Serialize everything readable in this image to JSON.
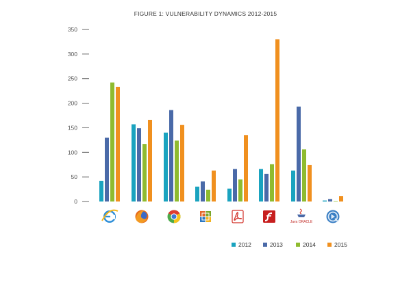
{
  "chart_data": {
    "type": "bar",
    "title": "FIGURE 1: VULNERABILITY DYNAMICS 2012-2015",
    "xlabel": "",
    "ylabel": "",
    "ylim": [
      0,
      350
    ],
    "yticks": [
      "0",
      "50",
      "100",
      "150",
      "200",
      "250",
      "300",
      "350"
    ],
    "grid": false,
    "legend_position": "bottom-right",
    "categories": [
      {
        "name": "Internet Explorer",
        "icon": "internet-explorer-icon"
      },
      {
        "name": "Firefox",
        "icon": "firefox-icon"
      },
      {
        "name": "Chrome",
        "icon": "chrome-icon"
      },
      {
        "name": "Microsoft Office",
        "icon": "microsoft-office-icon"
      },
      {
        "name": "Adobe Reader",
        "icon": "adobe-reader-icon"
      },
      {
        "name": "Adobe Flash",
        "icon": "adobe-flash-icon"
      },
      {
        "name": "Oracle Java",
        "icon": "oracle-java-icon"
      },
      {
        "name": "Apple QuickTime",
        "icon": "quicktime-icon"
      }
    ],
    "series": [
      {
        "name": "2012",
        "color": "#1aa3bf",
        "values": [
          42,
          157,
          140,
          30,
          26,
          66,
          63,
          2
        ]
      },
      {
        "name": "2013",
        "color": "#4a6aa8",
        "values": [
          130,
          149,
          186,
          41,
          66,
          56,
          193,
          5
        ]
      },
      {
        "name": "2014",
        "color": "#8fbb2f",
        "values": [
          242,
          117,
          124,
          24,
          45,
          76,
          106,
          1
        ]
      },
      {
        "name": "2015",
        "color": "#f0901f",
        "values": [
          233,
          166,
          156,
          63,
          135,
          330,
          74,
          11
        ]
      }
    ]
  },
  "logo_text": {
    "oracle_java": "Java ORACLE"
  }
}
